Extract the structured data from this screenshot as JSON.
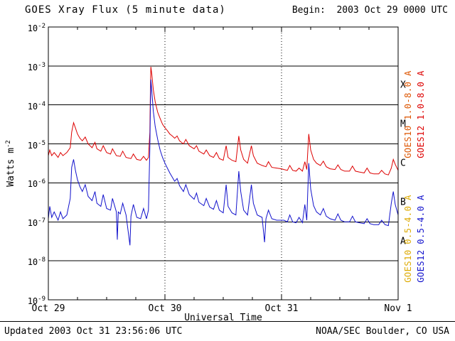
{
  "header": {
    "title": "GOES Xray Flux (5 minute data)",
    "begin_label": "Begin:  2003 Oct 29 0000 UTC"
  },
  "footer": {
    "updated": "Updated 2003 Oct 31 23:56:06 UTC",
    "source": "NOAA/SEC Boulder, CO USA"
  },
  "chart_data": {
    "type": "line",
    "title": "GOES Xray Flux (5 minute data)",
    "begin": "2003 Oct 29 0000 UTC",
    "xlabel": "Universal Time",
    "ylabel": "Watts m-2",
    "ylabel_parts": {
      "base": "Watts m",
      "exp": "-2"
    },
    "x_unit": "hours since 2003 Oct 29 0000 UTC",
    "xlim": [
      0,
      72
    ],
    "y_scale": "log10",
    "ylim": [
      1e-09,
      0.01
    ],
    "y_tick_exponents": [
      -2,
      -3,
      -4,
      -5,
      -6,
      -7,
      -8,
      -9
    ],
    "x_ticks": [
      {
        "hour": 0,
        "label": "Oct 29"
      },
      {
        "hour": 24,
        "label": "Oct 30"
      },
      {
        "hour": 48,
        "label": "Oct 31"
      },
      {
        "hour": 72,
        "label": "Nov 1"
      }
    ],
    "flare_classes": [
      {
        "label": "X",
        "between_exponents": [
          -4,
          -3
        ]
      },
      {
        "label": "M",
        "between_exponents": [
          -5,
          -4
        ]
      },
      {
        "label": "C",
        "between_exponents": [
          -6,
          -5
        ]
      },
      {
        "label": "B",
        "between_exponents": [
          -7,
          -6
        ]
      },
      {
        "label": "A",
        "between_exponents": [
          -8,
          -7
        ]
      }
    ],
    "grid": {
      "horizontal": "solid black at each decade",
      "vertical": "dotted at day boundaries"
    },
    "legend_position": "right margin, rotated 90deg",
    "legend": [
      {
        "id": "goes10-long",
        "label": "GOES10 1.0-8.0 A",
        "color": "#dd5500"
      },
      {
        "id": "goes12-long",
        "label": "GOES12 1.0-8.0 A",
        "color": "#dd0000"
      },
      {
        "id": "goes10-short",
        "label": "GOES10 0.5-4.0 A",
        "color": "#ddaa00"
      },
      {
        "id": "goes12-short",
        "label": "GOES12 0.5-4.0 A",
        "color": "#1111cc"
      }
    ],
    "series": [
      {
        "id": "goes12-long",
        "name": "GOES12 1.0-8.0 A",
        "color": "#dd0000",
        "points": [
          [
            0,
            5e-06
          ],
          [
            0.3,
            7e-06
          ],
          [
            0.7,
            5e-06
          ],
          [
            1.2,
            6e-06
          ],
          [
            2,
            4.5e-06
          ],
          [
            2.5,
            6e-06
          ],
          [
            3,
            5e-06
          ],
          [
            3.8,
            6e-06
          ],
          [
            4.5,
            8e-06
          ],
          [
            4.8,
            2e-05
          ],
          [
            5.2,
            3.5e-05
          ],
          [
            5.6,
            2.5e-05
          ],
          [
            6,
            1.8e-05
          ],
          [
            6.5,
            1.4e-05
          ],
          [
            7,
            1.2e-05
          ],
          [
            7.6,
            1.5e-05
          ],
          [
            8.2,
            1e-05
          ],
          [
            9,
            8e-06
          ],
          [
            9.6,
            1.1e-05
          ],
          [
            10,
            7.5e-06
          ],
          [
            10.8,
            6.5e-06
          ],
          [
            11.3,
            9e-06
          ],
          [
            12,
            6e-06
          ],
          [
            12.8,
            5.5e-06
          ],
          [
            13.2,
            7.5e-06
          ],
          [
            14,
            5e-06
          ],
          [
            14.8,
            4.8e-06
          ],
          [
            15.3,
            6.5e-06
          ],
          [
            16,
            4.5e-06
          ],
          [
            17,
            4.2e-06
          ],
          [
            17.5,
            5.5e-06
          ],
          [
            18.2,
            4e-06
          ],
          [
            19,
            3.8e-06
          ],
          [
            19.6,
            4.8e-06
          ],
          [
            20.2,
            3.8e-06
          ],
          [
            20.6,
            4.5e-06
          ],
          [
            20.9,
            2e-05
          ],
          [
            21,
            0.0002
          ],
          [
            21.1,
            0.00095
          ],
          [
            21.3,
            0.0006
          ],
          [
            21.6,
            0.00025
          ],
          [
            22,
            0.00012
          ],
          [
            22.5,
            6.5e-05
          ],
          [
            23,
            4.5e-05
          ],
          [
            23.5,
            3.2e-05
          ],
          [
            24,
            2.6e-05
          ],
          [
            24.5,
            2.2e-05
          ],
          [
            25,
            1.8e-05
          ],
          [
            25.5,
            1.6e-05
          ],
          [
            26,
            1.4e-05
          ],
          [
            26.5,
            1.6e-05
          ],
          [
            27,
            1.2e-05
          ],
          [
            27.8,
            1e-05
          ],
          [
            28.3,
            1.3e-05
          ],
          [
            29,
            9e-06
          ],
          [
            30,
            7.5e-06
          ],
          [
            30.5,
            9e-06
          ],
          [
            31,
            6.5e-06
          ],
          [
            32,
            5.5e-06
          ],
          [
            32.5,
            7e-06
          ],
          [
            33.2,
            5e-06
          ],
          [
            34,
            4.5e-06
          ],
          [
            34.6,
            6e-06
          ],
          [
            35.2,
            4.2e-06
          ],
          [
            36,
            3.8e-06
          ],
          [
            36.6,
            9e-06
          ],
          [
            37,
            4.5e-06
          ],
          [
            37.8,
            3.8e-06
          ],
          [
            38.6,
            3.5e-06
          ],
          [
            39.2,
            1.6e-05
          ],
          [
            39.6,
            7e-06
          ],
          [
            40.2,
            4e-06
          ],
          [
            41,
            3.2e-06
          ],
          [
            41.8,
            9e-06
          ],
          [
            42.2,
            5e-06
          ],
          [
            43,
            3.2e-06
          ],
          [
            44,
            2.8e-06
          ],
          [
            44.8,
            2.6e-06
          ],
          [
            45.3,
            3.5e-06
          ],
          [
            46,
            2.5e-06
          ],
          [
            47,
            2.4e-06
          ],
          [
            48,
            2.3e-06
          ],
          [
            48.5,
            2.2e-06
          ],
          [
            49.2,
            2.1e-06
          ],
          [
            49.7,
            2.8e-06
          ],
          [
            50.3,
            2.1e-06
          ],
          [
            51,
            2e-06
          ],
          [
            51.6,
            2.4e-06
          ],
          [
            52.3,
            2e-06
          ],
          [
            52.8,
            3.5e-06
          ],
          [
            53.2,
            2.2e-06
          ],
          [
            53.6,
            1.8e-05
          ],
          [
            54,
            7e-06
          ],
          [
            54.6,
            4e-06
          ],
          [
            55.2,
            3.2e-06
          ],
          [
            56,
            2.8e-06
          ],
          [
            56.6,
            3.6e-06
          ],
          [
            57.2,
            2.6e-06
          ],
          [
            58,
            2.3e-06
          ],
          [
            59,
            2.2e-06
          ],
          [
            59.6,
            2.9e-06
          ],
          [
            60.2,
            2.2e-06
          ],
          [
            61,
            2e-06
          ],
          [
            62,
            2e-06
          ],
          [
            62.6,
            2.7e-06
          ],
          [
            63.2,
            2e-06
          ],
          [
            64,
            1.9e-06
          ],
          [
            65,
            1.8e-06
          ],
          [
            65.6,
            2.4e-06
          ],
          [
            66.2,
            1.8e-06
          ],
          [
            67,
            1.7e-06
          ],
          [
            68,
            1.7e-06
          ],
          [
            68.6,
            2.1e-06
          ],
          [
            69.3,
            1.7e-06
          ],
          [
            70,
            1.6e-06
          ],
          [
            70.6,
            2.4e-06
          ],
          [
            71,
            4e-06
          ],
          [
            71.4,
            3e-06
          ],
          [
            72,
            2.1e-06
          ]
        ]
      },
      {
        "id": "goes12-short",
        "name": "GOES12 0.5-4.0 A",
        "color": "#1111cc",
        "points": [
          [
            0,
            1.2e-07
          ],
          [
            0.3,
            2.5e-07
          ],
          [
            0.7,
            1.3e-07
          ],
          [
            1.2,
            1.8e-07
          ],
          [
            2,
            1.1e-07
          ],
          [
            2.5,
            1.8e-07
          ],
          [
            3,
            1.2e-07
          ],
          [
            3.8,
            1.5e-07
          ],
          [
            4.5,
            4e-07
          ],
          [
            4.8,
            2.5e-06
          ],
          [
            5.2,
            4e-06
          ],
          [
            5.6,
            2e-06
          ],
          [
            6,
            1.2e-06
          ],
          [
            6.5,
            8e-07
          ],
          [
            7,
            6e-07
          ],
          [
            7.6,
            9e-07
          ],
          [
            8.2,
            4.5e-07
          ],
          [
            9,
            3.5e-07
          ],
          [
            9.6,
            6e-07
          ],
          [
            10,
            3e-07
          ],
          [
            10.8,
            2.5e-07
          ],
          [
            11.3,
            5e-07
          ],
          [
            12,
            2.2e-07
          ],
          [
            12.8,
            2e-07
          ],
          [
            13.2,
            4e-07
          ],
          [
            14,
            1.8e-07
          ],
          [
            14.2,
            3.5e-08
          ],
          [
            14.4,
            1.8e-07
          ],
          [
            14.8,
            1.6e-07
          ],
          [
            15.3,
            3e-07
          ],
          [
            16,
            1.5e-07
          ],
          [
            16.8,
            2.5e-08
          ],
          [
            17,
            1.4e-07
          ],
          [
            17.5,
            2.8e-07
          ],
          [
            18.2,
            1.3e-07
          ],
          [
            19,
            1.2e-07
          ],
          [
            19.6,
            2.2e-07
          ],
          [
            20.2,
            1.2e-07
          ],
          [
            20.6,
            2e-07
          ],
          [
            20.9,
            8e-06
          ],
          [
            21,
            8e-05
          ],
          [
            21.1,
            0.00045
          ],
          [
            21.3,
            0.00022
          ],
          [
            21.6,
            7e-05
          ],
          [
            22,
            2.8e-05
          ],
          [
            22.5,
            1.3e-05
          ],
          [
            23,
            7e-06
          ],
          [
            23.5,
            4.5e-06
          ],
          [
            24,
            3.2e-06
          ],
          [
            24.5,
            2.4e-06
          ],
          [
            25,
            1.8e-06
          ],
          [
            25.5,
            1.4e-06
          ],
          [
            26,
            1.1e-06
          ],
          [
            26.5,
            1.3e-06
          ],
          [
            27,
            8.5e-07
          ],
          [
            27.8,
            6e-07
          ],
          [
            28.3,
            9e-07
          ],
          [
            29,
            5e-07
          ],
          [
            30,
            3.8e-07
          ],
          [
            30.5,
            5.5e-07
          ],
          [
            31,
            3.2e-07
          ],
          [
            32,
            2.6e-07
          ],
          [
            32.5,
            4e-07
          ],
          [
            33.2,
            2.4e-07
          ],
          [
            34,
            2.1e-07
          ],
          [
            34.6,
            3.5e-07
          ],
          [
            35.2,
            2e-07
          ],
          [
            36,
            1.7e-07
          ],
          [
            36.6,
            9e-07
          ],
          [
            37,
            2.5e-07
          ],
          [
            37.8,
            1.7e-07
          ],
          [
            38.6,
            1.5e-07
          ],
          [
            39.2,
            2e-06
          ],
          [
            39.6,
            6e-07
          ],
          [
            40.2,
            2e-07
          ],
          [
            41,
            1.5e-07
          ],
          [
            41.8,
            9e-07
          ],
          [
            42.2,
            3e-07
          ],
          [
            43,
            1.5e-07
          ],
          [
            44,
            1.3e-07
          ],
          [
            44.5,
            3e-08
          ],
          [
            44.8,
            1.2e-07
          ],
          [
            45.3,
            2e-07
          ],
          [
            46,
            1.2e-07
          ],
          [
            47,
            1.1e-07
          ],
          [
            48,
            1.1e-07
          ],
          [
            48.5,
            1.1e-07
          ],
          [
            49.2,
            1e-07
          ],
          [
            49.7,
            1.5e-07
          ],
          [
            50.3,
            1e-07
          ],
          [
            51,
            9.5e-08
          ],
          [
            51.6,
            1.3e-07
          ],
          [
            52.3,
            9.5e-08
          ],
          [
            52.8,
            2.8e-07
          ],
          [
            53.2,
            1.1e-07
          ],
          [
            53.6,
            3.2e-06
          ],
          [
            54,
            7e-07
          ],
          [
            54.6,
            2.6e-07
          ],
          [
            55.2,
            1.8e-07
          ],
          [
            56,
            1.5e-07
          ],
          [
            56.6,
            2.2e-07
          ],
          [
            57.2,
            1.4e-07
          ],
          [
            58,
            1.2e-07
          ],
          [
            59,
            1.1e-07
          ],
          [
            59.6,
            1.6e-07
          ],
          [
            60.2,
            1.1e-07
          ],
          [
            61,
            1e-07
          ],
          [
            62,
            1e-07
          ],
          [
            62.6,
            1.4e-07
          ],
          [
            63.2,
            1e-07
          ],
          [
            64,
            9.5e-08
          ],
          [
            65,
            9e-08
          ],
          [
            65.6,
            1.2e-07
          ],
          [
            66.2,
            9e-08
          ],
          [
            67,
            8.5e-08
          ],
          [
            68,
            8.5e-08
          ],
          [
            68.6,
            1.1e-07
          ],
          [
            69.3,
            8.5e-08
          ],
          [
            70,
            8e-08
          ],
          [
            70.6,
            3e-07
          ],
          [
            71,
            6e-07
          ],
          [
            71.4,
            2.8e-07
          ],
          [
            72,
            1.5e-07
          ]
        ]
      }
    ]
  }
}
